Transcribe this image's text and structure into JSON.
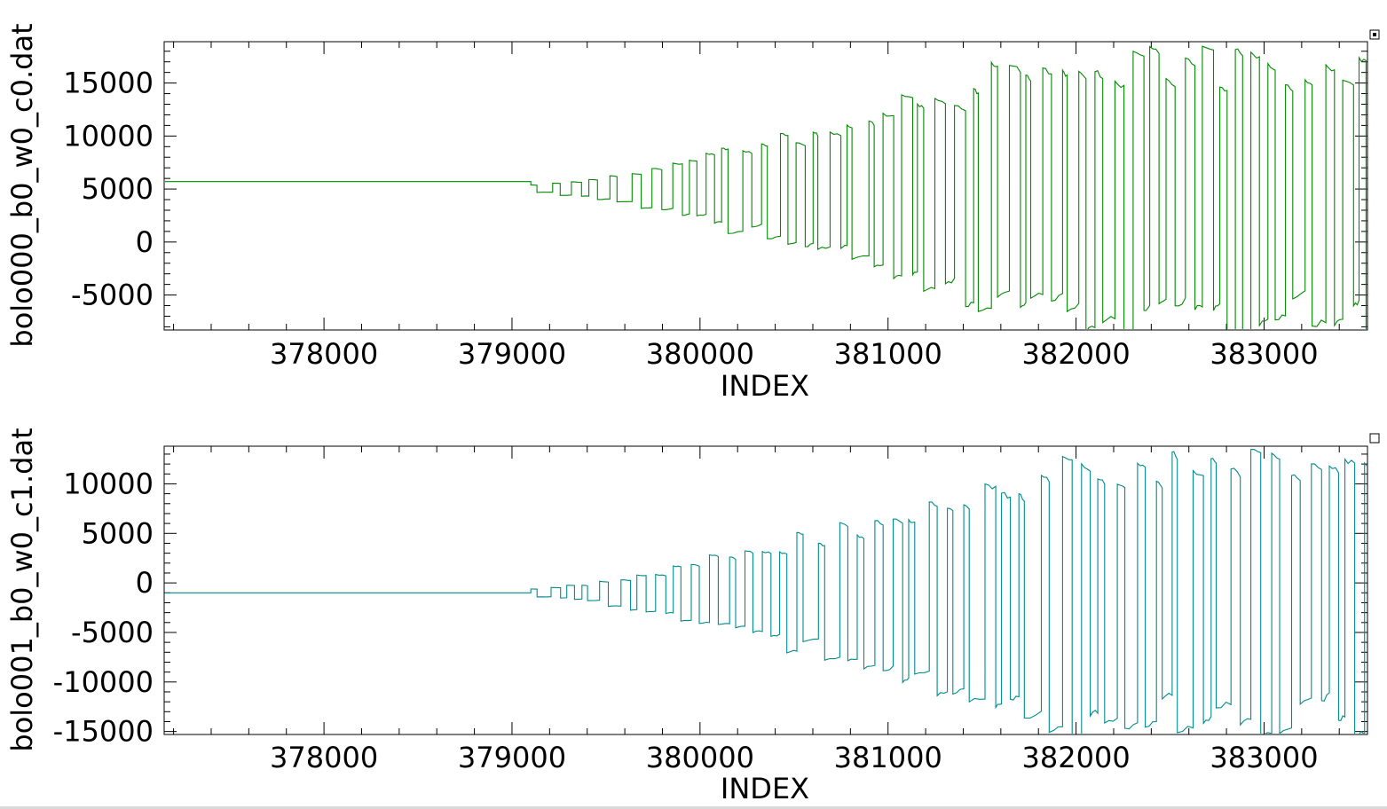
{
  "chart_data": [
    {
      "type": "line",
      "title": "",
      "xlabel": "INDEX",
      "ylabel": "bolo000_b0_w0_c0.dat",
      "xlim": [
        377150,
        383550
      ],
      "ylim": [
        -8300,
        18900
      ],
      "xticks": [
        378000,
        379000,
        380000,
        381000,
        382000,
        383000
      ],
      "yticks": [
        -5000,
        0,
        5000,
        10000,
        15000
      ],
      "grid": false,
      "color": "#008a00",
      "selected": true,
      "series": [
        {
          "flat_until": 379100,
          "baseline": 5700,
          "center": 5000,
          "onset": 379100,
          "envelope_start": 400,
          "envelope_growth_end": 381800,
          "envelope_max": 13000,
          "step_width": 40,
          "period": 95
        }
      ]
    },
    {
      "type": "line",
      "title": "",
      "xlabel": "INDEX",
      "ylabel": "bolo001_b0_w0_c1.dat",
      "xlim": [
        377150,
        383550
      ],
      "ylim": [
        -15300,
        13800
      ],
      "xticks": [
        378000,
        379000,
        380000,
        381000,
        382000,
        383000
      ],
      "yticks": [
        -15000,
        -10000,
        -5000,
        0,
        5000,
        10000
      ],
      "grid": false,
      "color": "#008b8b",
      "selected": false,
      "series": [
        {
          "flat_until": 379100,
          "baseline": -1000,
          "center": -1000,
          "onset": 379100,
          "envelope_start": 400,
          "envelope_growth_end": 381800,
          "envelope_max": 13500,
          "step_width": 40,
          "period": 95
        }
      ]
    }
  ]
}
